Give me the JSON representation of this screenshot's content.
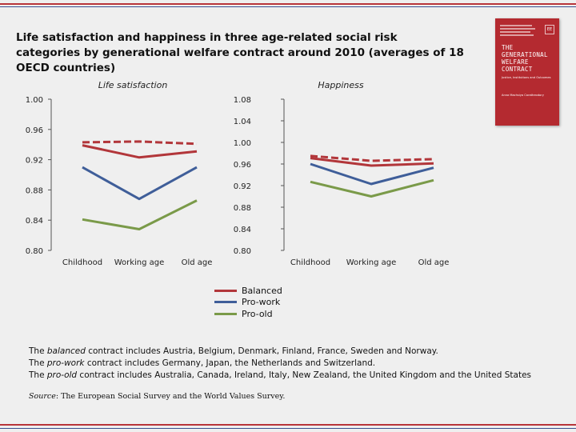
{
  "title": "Life satisfaction and happiness in three age-related social risk categories by generational welfare contract around 2010 (averages of 18 OECD countries)",
  "book": {
    "cover_title": "THE GENERATIONAL WELFARE CONTRACT",
    "cover_subtitle": "Justice, Institutions and Outcomes",
    "cover_authors": "Anna Machsiya Caratheodory",
    "logo": "EE"
  },
  "colors": {
    "balanced": "#b2363a",
    "pro_work": "#3f5e99",
    "pro_old": "#7a9a49"
  },
  "chart_data": [
    {
      "type": "line",
      "title": "Life satisfaction",
      "categories": [
        "Childhood",
        "Working age",
        "Old age"
      ],
      "ylim": [
        0.8,
        1.0
      ],
      "yticks": [
        "1.00",
        "0.96",
        "0.92",
        "0.88",
        "0.84",
        "0.80"
      ],
      "yticks_values": [
        1.0,
        0.96,
        0.92,
        0.88,
        0.84,
        0.8
      ],
      "series": [
        {
          "name": "Balanced (dashed)",
          "key": "balanced",
          "dash": true,
          "values": [
            0.943,
            0.944,
            0.941
          ]
        },
        {
          "name": "Balanced",
          "key": "balanced",
          "dash": false,
          "values": [
            0.939,
            0.923,
            0.931
          ]
        },
        {
          "name": "Pro-work",
          "key": "pro_work",
          "dash": false,
          "values": [
            0.91,
            0.868,
            0.91
          ]
        },
        {
          "name": "Pro-old",
          "key": "pro_old",
          "dash": false,
          "values": [
            0.841,
            0.828,
            0.866
          ]
        }
      ]
    },
    {
      "type": "line",
      "title": "Happiness",
      "categories": [
        "Childhood",
        "Working age",
        "Old age"
      ],
      "ylim": [
        0.8,
        1.08
      ],
      "yticks": [
        "1.08",
        "1.04",
        "1.00",
        "0.96",
        "0.92",
        "0.88",
        "0.84",
        "0.80"
      ],
      "yticks_values": [
        1.08,
        1.04,
        1.0,
        0.96,
        0.92,
        0.88,
        0.84,
        0.8
      ],
      "series": [
        {
          "name": "Balanced (dashed)",
          "key": "balanced",
          "dash": true,
          "values": [
            0.975,
            0.966,
            0.969
          ]
        },
        {
          "name": "Balanced",
          "key": "balanced",
          "dash": false,
          "values": [
            0.971,
            0.957,
            0.961
          ]
        },
        {
          "name": "Pro-work",
          "key": "pro_work",
          "dash": false,
          "values": [
            0.96,
            0.923,
            0.953
          ]
        },
        {
          "name": "Pro-old",
          "key": "pro_old",
          "dash": false,
          "values": [
            0.927,
            0.9,
            0.93
          ]
        }
      ]
    }
  ],
  "legend": [
    {
      "label": "Balanced",
      "key": "balanced"
    },
    {
      "label": "Pro-work",
      "key": "pro_work"
    },
    {
      "label": "Pro-old",
      "key": "pro_old"
    }
  ],
  "notes": {
    "line1_pre": "The ",
    "line1_em": "balanced",
    "line1_post": " contract includes Austria, Belgium, Denmark, Finland, France, Sweden and Norway.",
    "line2_pre": "The ",
    "line2_em": "pro-work",
    "line2_post": " contract includes Germany, Japan, the Netherlands and Switzerland.",
    "line3_pre": "The ",
    "line3_em": "pro-old",
    "line3_post": " contract includes Australia, Canada, Ireland, Italy, New Zealand, the United Kingdom and the United States"
  },
  "source": {
    "label": "Source",
    "text": ": The European Social Survey and the World Values Survey."
  }
}
